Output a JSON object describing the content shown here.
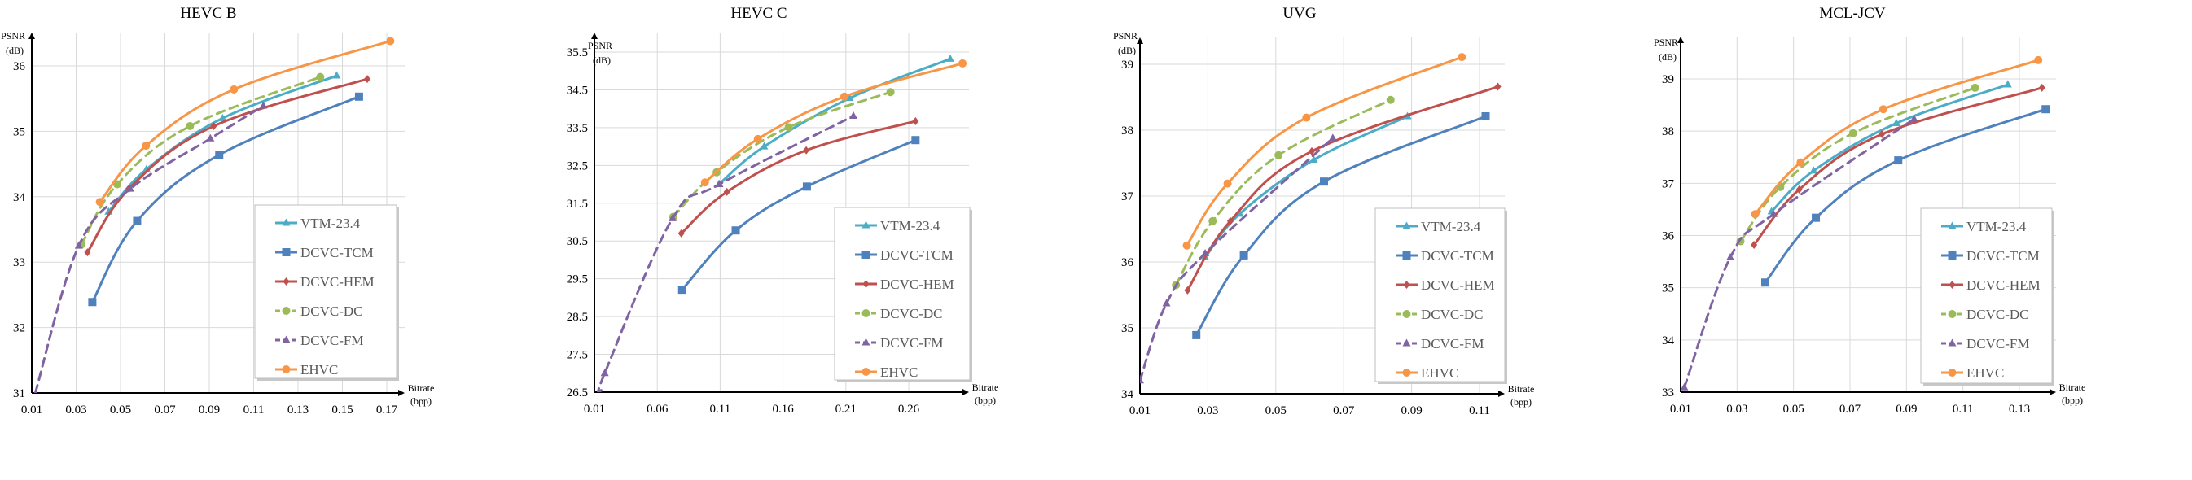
{
  "chart_data": [
    {
      "type": "line",
      "title": "HEVC B",
      "xlabel": "Bitrate (bpp)",
      "xlabel_line1": "Bitrate",
      "xlabel_line2": "(bpp)",
      "ylabel": "PSNR (dB)",
      "ylabel_line1": "PSNR",
      "ylabel_line2": "(dB)",
      "xlim": [
        0.01,
        0.17
      ],
      "ylim": [
        31,
        36
      ],
      "xticks": [
        "0.01",
        "0.03",
        "0.05",
        "0.07",
        "0.09",
        "0.11",
        "0.13",
        "0.15",
        "0.17"
      ],
      "yticks": [
        "31",
        "32",
        "33",
        "34",
        "35",
        "36"
      ],
      "grid": true,
      "legend": "bottom-right",
      "series": [
        {
          "name": "VTM-23.4",
          "x": [
            0.0446,
            0.0617,
            0.096,
            0.1474
          ],
          "y": [
            33.77,
            34.42,
            35.2,
            35.85
          ]
        },
        {
          "name": "DCVC-TCM",
          "x": [
            0.0373,
            0.0575,
            0.0945,
            0.1575
          ],
          "y": [
            32.39,
            33.63,
            34.64,
            35.53
          ]
        },
        {
          "name": "DCVC-HEM",
          "x": [
            0.0351,
            0.0538,
            0.092,
            0.1612
          ],
          "y": [
            33.15,
            34.12,
            35.08,
            35.8
          ]
        },
        {
          "name": "DCVC-DC",
          "x": [
            0.0324,
            0.0485,
            0.0813,
            0.14
          ],
          "y": [
            33.27,
            34.19,
            35.08,
            35.83
          ]
        },
        {
          "name": "DCVC-FM",
          "x": [
            0.0116,
            0.0312,
            0.0544,
            0.0905,
            0.1144
          ],
          "y": [
            31.0,
            33.25,
            34.12,
            34.89,
            35.39
          ]
        },
        {
          "name": "EHVC",
          "x": [
            0.0407,
            0.0615,
            0.1011,
            0.1716
          ],
          "y": [
            33.92,
            34.78,
            35.64,
            36.38
          ]
        }
      ]
    },
    {
      "type": "line",
      "title": "HEVC C",
      "xlabel": "Bitrate (bpp)",
      "xlabel_line1": "Bitrate",
      "xlabel_line2": "(bpp)",
      "ylabel": "PSNR (dB)",
      "ylabel_line1": "PSNR",
      "ylabel_line2": "(dB)",
      "xlim": [
        0.01,
        0.26
      ],
      "ylim": [
        26.5,
        35.5
      ],
      "xticks": [
        "0.01",
        "0.06",
        "0.11",
        "0.16",
        "0.21",
        "0.26"
      ],
      "yticks": [
        "26.5",
        "27.5",
        "28.5",
        "29.5",
        "30.5",
        "31.5",
        "32.5",
        "33.5",
        "34.5",
        "35.5"
      ],
      "grid": true,
      "legend": "bottom-right",
      "series": [
        {
          "name": "VTM-23.4",
          "x": [
            0.109,
            0.145,
            0.213,
            0.293
          ],
          "y": [
            32.0,
            33.0,
            34.28,
            35.32
          ]
        },
        {
          "name": "DCVC-TCM",
          "x": [
            0.0798,
            0.1224,
            0.179,
            0.2654
          ],
          "y": [
            29.21,
            30.78,
            31.94,
            33.17
          ]
        },
        {
          "name": "DCVC-HEM",
          "x": [
            0.0791,
            0.1154,
            0.1785,
            0.2654
          ],
          "y": [
            30.7,
            31.8,
            32.9,
            33.67
          ]
        },
        {
          "name": "DCVC-DC",
          "x": [
            0.0727,
            0.1072,
            0.1645,
            0.2455
          ],
          "y": [
            31.14,
            32.32,
            33.51,
            34.44
          ]
        },
        {
          "name": "DCVC-FM",
          "x": [
            0.0154,
            0.0182,
            0.0722,
            0.1094,
            0.216
          ],
          "y": [
            26.54,
            27.0,
            31.1,
            32.0,
            33.81
          ]
        },
        {
          "name": "EHVC",
          "x": [
            0.0979,
            0.14,
            0.2088,
            0.3028
          ],
          "y": [
            32.05,
            33.2,
            34.32,
            35.2
          ]
        }
      ]
    },
    {
      "type": "line",
      "title": "UVG",
      "xlabel": "Bitrate (bpp)",
      "xlabel_line1": "Bitrate",
      "xlabel_line2": "(bpp)",
      "ylabel": "PSNR (dB)",
      "ylabel_line1": "PSNR",
      "ylabel_line2": "(dB)",
      "xlim": [
        0.01,
        0.11
      ],
      "ylim": [
        34,
        39
      ],
      "xticks": [
        "0.01",
        "0.03",
        "0.05",
        "0.07",
        "0.09",
        "0.11"
      ],
      "yticks": [
        "34",
        "35",
        "36",
        "37",
        "38",
        "39"
      ],
      "grid": true,
      "legend": "bottom-right",
      "series": [
        {
          "name": "VTM-23.4",
          "x": [
            0.0292,
            0.0394,
            0.0612,
            0.0888
          ],
          "y": [
            36.07,
            36.73,
            37.55,
            38.21
          ]
        },
        {
          "name": "DCVC-TCM",
          "x": [
            0.0266,
            0.0406,
            0.0642,
            0.1118
          ],
          "y": [
            34.89,
            36.1,
            37.22,
            38.21
          ]
        },
        {
          "name": "DCVC-HEM",
          "x": [
            0.024,
            0.0366,
            0.0606,
            0.1154
          ],
          "y": [
            35.57,
            36.62,
            37.68,
            38.66
          ]
        },
        {
          "name": "DCVC-DC",
          "x": [
            0.0206,
            0.0314,
            0.0508,
            0.0838
          ],
          "y": [
            35.65,
            36.62,
            37.62,
            38.46
          ]
        },
        {
          "name": "DCVC-FM",
          "x": [
            0.01,
            0.0178,
            0.0292,
            0.0668
          ],
          "y": [
            34.2,
            35.37,
            36.13,
            37.88
          ]
        },
        {
          "name": "EHVC",
          "x": [
            0.0238,
            0.0358,
            0.059,
            0.1048
          ],
          "y": [
            36.25,
            37.19,
            38.19,
            39.11
          ]
        }
      ]
    },
    {
      "type": "line",
      "title": "MCL-JCV",
      "xlabel": "Bitrate (bpp)",
      "xlabel_line1": "Bitrate",
      "xlabel_line2": "(bpp)",
      "ylabel": "PSNR (dB)",
      "ylabel_line1": "PSNR",
      "ylabel_line2": "(dB)",
      "xlim": [
        0.01,
        0.13
      ],
      "ylim": [
        33,
        39
      ],
      "xticks": [
        "0.01",
        "0.03",
        "0.05",
        "0.07",
        "0.09",
        "0.11",
        "0.13"
      ],
      "yticks": [
        "33",
        "34",
        "35",
        "36",
        "37",
        "38",
        "39"
      ],
      "grid": true,
      "legend": "bottom-right",
      "series": [
        {
          "name": "VTM-23.4",
          "x": [
            0.0422,
            0.0571,
            0.0864,
            0.1259
          ],
          "y": [
            36.46,
            37.24,
            38.15,
            38.89
          ]
        },
        {
          "name": "DCVC-TCM",
          "x": [
            0.04,
            0.0579,
            0.0871,
            0.1393
          ],
          "y": [
            35.1,
            36.34,
            37.44,
            38.42
          ]
        },
        {
          "name": "DCVC-HEM",
          "x": [
            0.036,
            0.052,
            0.0813,
            0.138
          ],
          "y": [
            35.82,
            36.88,
            37.94,
            38.83
          ]
        },
        {
          "name": "DCVC-DC",
          "x": [
            0.0312,
            0.0453,
            0.0711,
            0.1143
          ],
          "y": [
            35.89,
            36.93,
            37.96,
            38.83
          ]
        },
        {
          "name": "DCVC-FM",
          "x": [
            0.0113,
            0.0276,
            0.0429,
            0.0927
          ],
          "y": [
            33.09,
            35.58,
            36.41,
            38.23
          ]
        },
        {
          "name": "EHVC",
          "x": [
            0.0364,
            0.0525,
            0.0818,
            0.1367
          ],
          "y": [
            36.41,
            37.4,
            38.42,
            39.36
          ]
        }
      ]
    }
  ],
  "series_style": [
    {
      "name": "VTM-23.4",
      "color": "#4bacc6",
      "marker": "triangle",
      "dash": false
    },
    {
      "name": "DCVC-TCM",
      "color": "#4f81bd",
      "marker": "square",
      "dash": false
    },
    {
      "name": "DCVC-HEM",
      "color": "#c0504d",
      "marker": "diamond",
      "dash": false
    },
    {
      "name": "DCVC-DC",
      "color": "#9bbb59",
      "marker": "circle",
      "dash": true
    },
    {
      "name": "DCVC-FM",
      "color": "#8064a2",
      "marker": "triangle",
      "dash": true
    },
    {
      "name": "EHVC",
      "color": "#f79646",
      "marker": "circle",
      "dash": false
    }
  ]
}
